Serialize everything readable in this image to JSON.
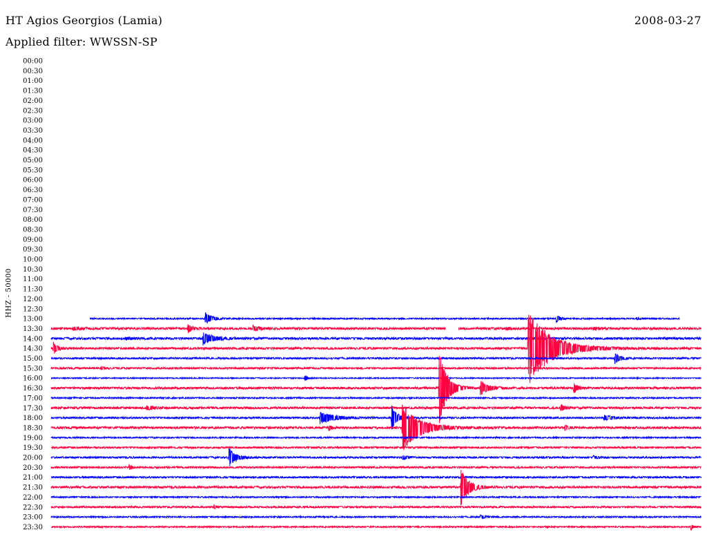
{
  "header": {
    "station": "HT Agios Georgios (Lamia)",
    "date": "2008-03-27",
    "filter": "Applied filter: WWSSN-SP"
  },
  "chart_data": {
    "type": "line",
    "title": "HT Agios Georgios (Lamia)",
    "ylabel": "HHZ - 50000",
    "xlabel": "",
    "time_labels": [
      "00:00",
      "00:30",
      "01:00",
      "01:30",
      "02:00",
      "02:30",
      "03:00",
      "03:30",
      "04:00",
      "04:30",
      "05:00",
      "05:30",
      "06:00",
      "06:30",
      "07:00",
      "07:30",
      "08:00",
      "08:30",
      "09:00",
      "09:30",
      "10:00",
      "10:30",
      "11:00",
      "11:30",
      "12:00",
      "12:30",
      "13:00",
      "13:30",
      "14:00",
      "14:30",
      "15:00",
      "15:30",
      "16:00",
      "16:30",
      "17:00",
      "17:30",
      "18:00",
      "18:30",
      "19:00",
      "19:30",
      "20:00",
      "20:30",
      "21:00",
      "21:30",
      "22:00",
      "22:30",
      "23:00",
      "23:30"
    ],
    "colors": {
      "even": "#0000ff",
      "odd": "#ff0040"
    },
    "x_range_minutes": [
      0,
      30
    ],
    "traces": [
      {
        "label": "13:00",
        "start_min": 1.8,
        "end_min": 29.0,
        "noise": 0.04,
        "events": [
          {
            "t": 7.1,
            "amp": 0.5,
            "dur": 0.5
          },
          {
            "t": 23.3,
            "amp": 0.35,
            "dur": 0.3
          },
          {
            "t": 27.0,
            "amp": 0.08,
            "dur": 0.4
          }
        ]
      },
      {
        "label": "13:30",
        "start_min": 0.0,
        "end_min": 30.0,
        "gaps": [
          [
            18.2,
            18.8
          ]
        ],
        "noise": 0.06,
        "events": [
          {
            "t": 1.0,
            "amp": 0.12,
            "dur": 0.7
          },
          {
            "t": 6.3,
            "amp": 0.4,
            "dur": 0.3
          },
          {
            "t": 9.3,
            "amp": 0.2,
            "dur": 0.5
          },
          {
            "t": 21.0,
            "amp": 0.1,
            "dur": 0.3
          },
          {
            "t": 25.0,
            "amp": 0.1,
            "dur": 0.3
          }
        ]
      },
      {
        "label": "14:00",
        "start_min": 0.0,
        "end_min": 30.0,
        "noise": 0.06,
        "events": [
          {
            "t": 7.0,
            "amp": 0.5,
            "dur": 0.8
          },
          {
            "t": 3.4,
            "amp": 0.08,
            "dur": 0.6
          }
        ]
      },
      {
        "label": "14:30",
        "start_min": 0.0,
        "end_min": 30.0,
        "noise": 0.06,
        "events": [
          {
            "t": 0.1,
            "amp": 0.5,
            "dur": 0.3
          },
          {
            "t": 22.0,
            "amp": 3.0,
            "dur": 1.8
          }
        ]
      },
      {
        "label": "15:00",
        "start_min": 0.0,
        "end_min": 30.0,
        "noise": 0.05,
        "events": [
          {
            "t": 26.0,
            "amp": 0.45,
            "dur": 0.4
          }
        ]
      },
      {
        "label": "15:30",
        "start_min": 0.0,
        "end_min": 30.0,
        "noise": 0.05,
        "events": [
          {
            "t": 2.3,
            "amp": 0.1,
            "dur": 0.4
          }
        ]
      },
      {
        "label": "16:00",
        "start_min": 0.0,
        "end_min": 30.0,
        "noise": 0.03,
        "events": [
          {
            "t": 11.7,
            "amp": 0.25,
            "dur": 0.2
          }
        ]
      },
      {
        "label": "16:30",
        "start_min": 0.0,
        "end_min": 30.0,
        "noise": 0.06,
        "events": [
          {
            "t": 17.9,
            "amp": 3.2,
            "dur": 0.6
          },
          {
            "t": 19.8,
            "amp": 0.6,
            "dur": 0.6
          },
          {
            "t": 24.1,
            "amp": 0.45,
            "dur": 0.3
          }
        ]
      },
      {
        "label": "17:00",
        "start_min": 0.0,
        "end_min": 30.0,
        "noise": 0.04,
        "events": []
      },
      {
        "label": "17:30",
        "start_min": 0.0,
        "end_min": 30.0,
        "noise": 0.06,
        "events": [
          {
            "t": 4.4,
            "amp": 0.15,
            "dur": 0.6
          },
          {
            "t": 23.5,
            "amp": 0.3,
            "dur": 0.3
          }
        ]
      },
      {
        "label": "18:00",
        "start_min": 0.0,
        "end_min": 30.0,
        "noise": 0.05,
        "events": [
          {
            "t": 12.4,
            "amp": 0.5,
            "dur": 1.0
          },
          {
            "t": 15.7,
            "amp": 1.1,
            "dur": 0.4
          },
          {
            "t": 25.5,
            "amp": 0.2,
            "dur": 0.7
          }
        ]
      },
      {
        "label": "18:30",
        "start_min": 0.0,
        "end_min": 30.0,
        "noise": 0.06,
        "events": [
          {
            "t": 16.2,
            "amp": 2.0,
            "dur": 1.3
          },
          {
            "t": 12.8,
            "amp": 0.25,
            "dur": 0.2
          },
          {
            "t": 23.7,
            "amp": 0.25,
            "dur": 0.2
          }
        ]
      },
      {
        "label": "19:00",
        "start_min": 0.0,
        "end_min": 30.0,
        "noise": 0.04,
        "events": []
      },
      {
        "label": "19:30",
        "start_min": 0.0,
        "end_min": 30.0,
        "noise": 0.05,
        "events": []
      },
      {
        "label": "20:00",
        "start_min": 0.0,
        "end_min": 30.0,
        "noise": 0.05,
        "events": [
          {
            "t": 8.2,
            "amp": 0.8,
            "dur": 0.5
          },
          {
            "t": 16.2,
            "amp": 0.15,
            "dur": 0.4
          },
          {
            "t": 25.0,
            "amp": 0.12,
            "dur": 0.4
          }
        ]
      },
      {
        "label": "20:30",
        "start_min": 0.0,
        "end_min": 30.0,
        "noise": 0.05,
        "events": [
          {
            "t": 3.6,
            "amp": 0.2,
            "dur": 0.2
          }
        ]
      },
      {
        "label": "21:00",
        "start_min": 0.0,
        "end_min": 30.0,
        "noise": 0.05,
        "events": []
      },
      {
        "label": "21:30",
        "start_min": 0.0,
        "end_min": 30.0,
        "noise": 0.06,
        "events": [
          {
            "t": 18.9,
            "amp": 1.5,
            "dur": 0.6
          }
        ]
      },
      {
        "label": "22:00",
        "start_min": 0.0,
        "end_min": 30.0,
        "noise": 0.04,
        "events": []
      },
      {
        "label": "22:30",
        "start_min": 0.0,
        "end_min": 30.0,
        "noise": 0.05,
        "events": [
          {
            "t": 7.5,
            "amp": 0.15,
            "dur": 0.2
          }
        ]
      },
      {
        "label": "23:00",
        "start_min": 0.0,
        "end_min": 30.0,
        "noise": 0.04,
        "events": [
          {
            "t": 19.8,
            "amp": 0.12,
            "dur": 0.6
          }
        ]
      },
      {
        "label": "23:30",
        "start_min": 0.0,
        "end_min": 30.0,
        "noise": 0.04,
        "events": [
          {
            "t": 29.5,
            "amp": 0.25,
            "dur": 0.2
          }
        ]
      }
    ]
  }
}
